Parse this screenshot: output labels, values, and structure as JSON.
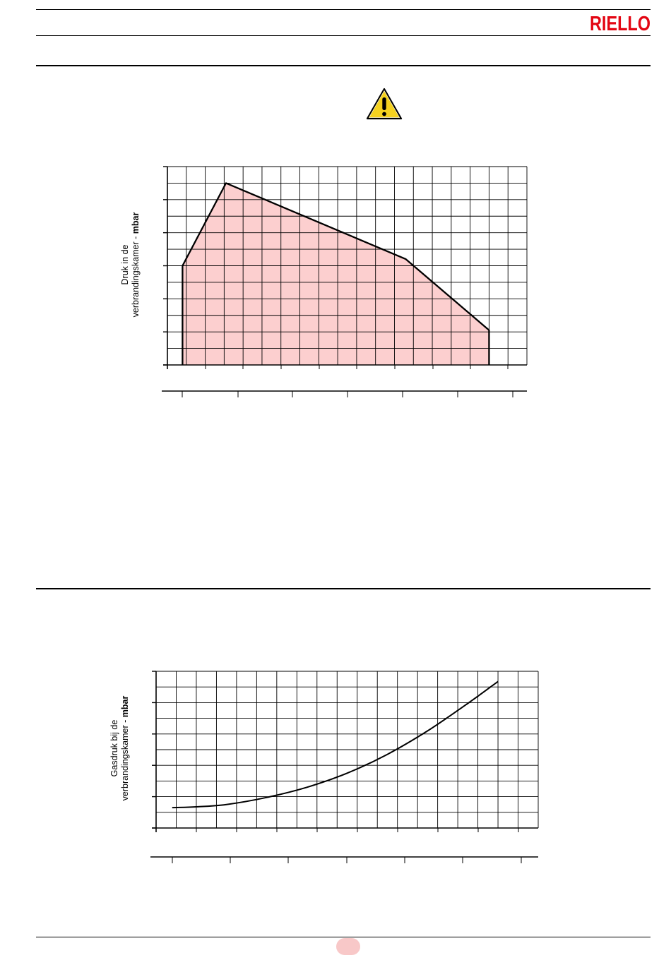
{
  "header": {
    "brand": "RIELLO",
    "brand_color": "#e30613"
  },
  "warning_icon": {
    "name": "warning-triangle-icon",
    "color": "#f5d21f"
  },
  "chart_data": [
    {
      "type": "area",
      "ylabel_line1": "Druk in de",
      "ylabel_line2_prefix": "verbrandingskamer - ",
      "ylabel_unit": "mbar",
      "fill_color": "#fccfcf",
      "grid": true,
      "xlim": [
        0,
        19
      ],
      "ylim": [
        0,
        12
      ],
      "points": [
        [
          0.8,
          0
        ],
        [
          0.8,
          6
        ],
        [
          3.1,
          11
        ],
        [
          12.6,
          6.4
        ],
        [
          17.0,
          2.1
        ],
        [
          17.0,
          0
        ]
      ]
    },
    {
      "type": "line",
      "ylabel_line1": "Gasdruk bij de",
      "ylabel_line2_prefix": "verbrandingskamer - ",
      "ylabel_unit": "mbar",
      "grid": true,
      "xlim": [
        0,
        19
      ],
      "ylim": [
        0,
        10
      ],
      "points": [
        [
          0.8,
          1.3
        ],
        [
          2.0,
          1.35
        ],
        [
          3.5,
          1.5
        ],
        [
          5.5,
          1.95
        ],
        [
          7.5,
          2.6
        ],
        [
          9.5,
          3.5
        ],
        [
          11.5,
          4.7
        ],
        [
          13.5,
          6.2
        ],
        [
          15.5,
          7.95
        ],
        [
          17.0,
          9.35
        ]
      ]
    }
  ]
}
